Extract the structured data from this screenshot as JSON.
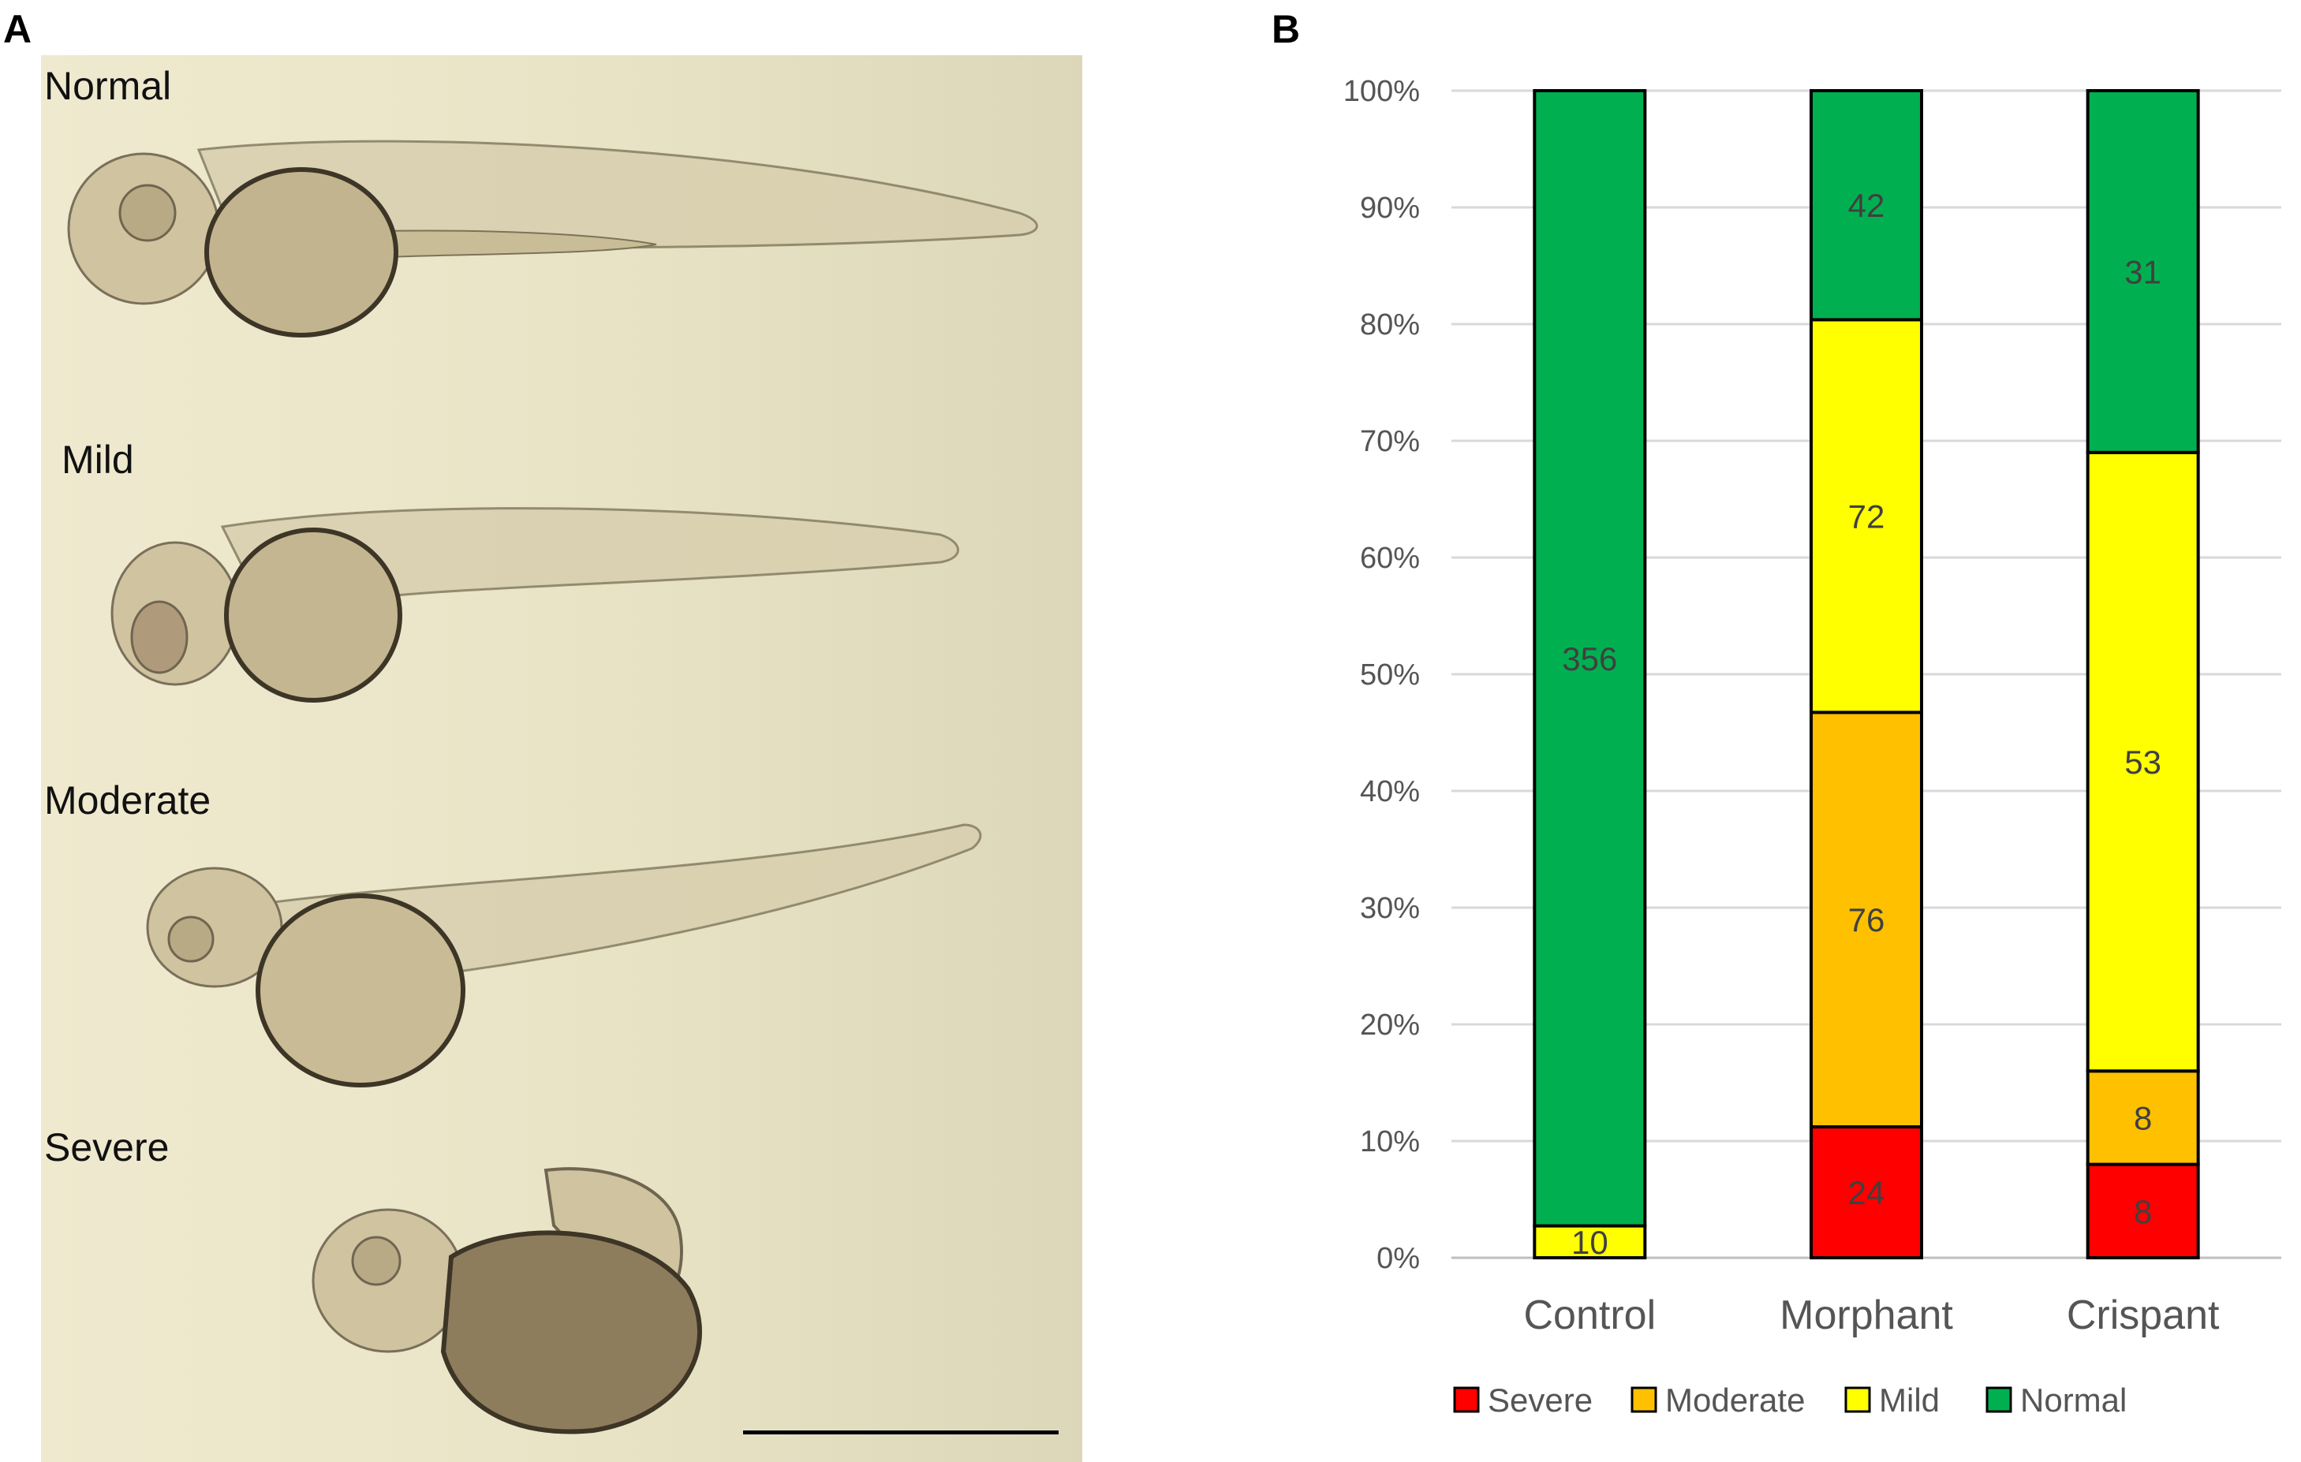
{
  "panels": {
    "a_label": "A",
    "b_label": "B"
  },
  "photo_panel": {
    "strips": [
      {
        "label": "Normal"
      },
      {
        "label": "Mild"
      },
      {
        "label": "Moderate"
      },
      {
        "label": "Severe"
      }
    ]
  },
  "chart_data": {
    "type": "bar",
    "stacked": true,
    "normalized": true,
    "categories": [
      "Control",
      "Morphant",
      "Crispant"
    ],
    "series": [
      {
        "name": "Severe",
        "color": "#ff0000",
        "values": [
          0,
          24,
          8
        ]
      },
      {
        "name": "Moderate",
        "color": "#ffc000",
        "values": [
          0,
          76,
          8
        ]
      },
      {
        "name": "Mild",
        "color": "#ffff00",
        "values": [
          10,
          72,
          53
        ]
      },
      {
        "name": "Normal",
        "color": "#00b050",
        "values": [
          356,
          42,
          31
        ]
      }
    ],
    "y_ticks": [
      "0%",
      "10%",
      "20%",
      "30%",
      "40%",
      "50%",
      "60%",
      "70%",
      "80%",
      "90%",
      "100%"
    ],
    "ylim": [
      0,
      100
    ],
    "grid": true,
    "legend_position": "bottom"
  }
}
